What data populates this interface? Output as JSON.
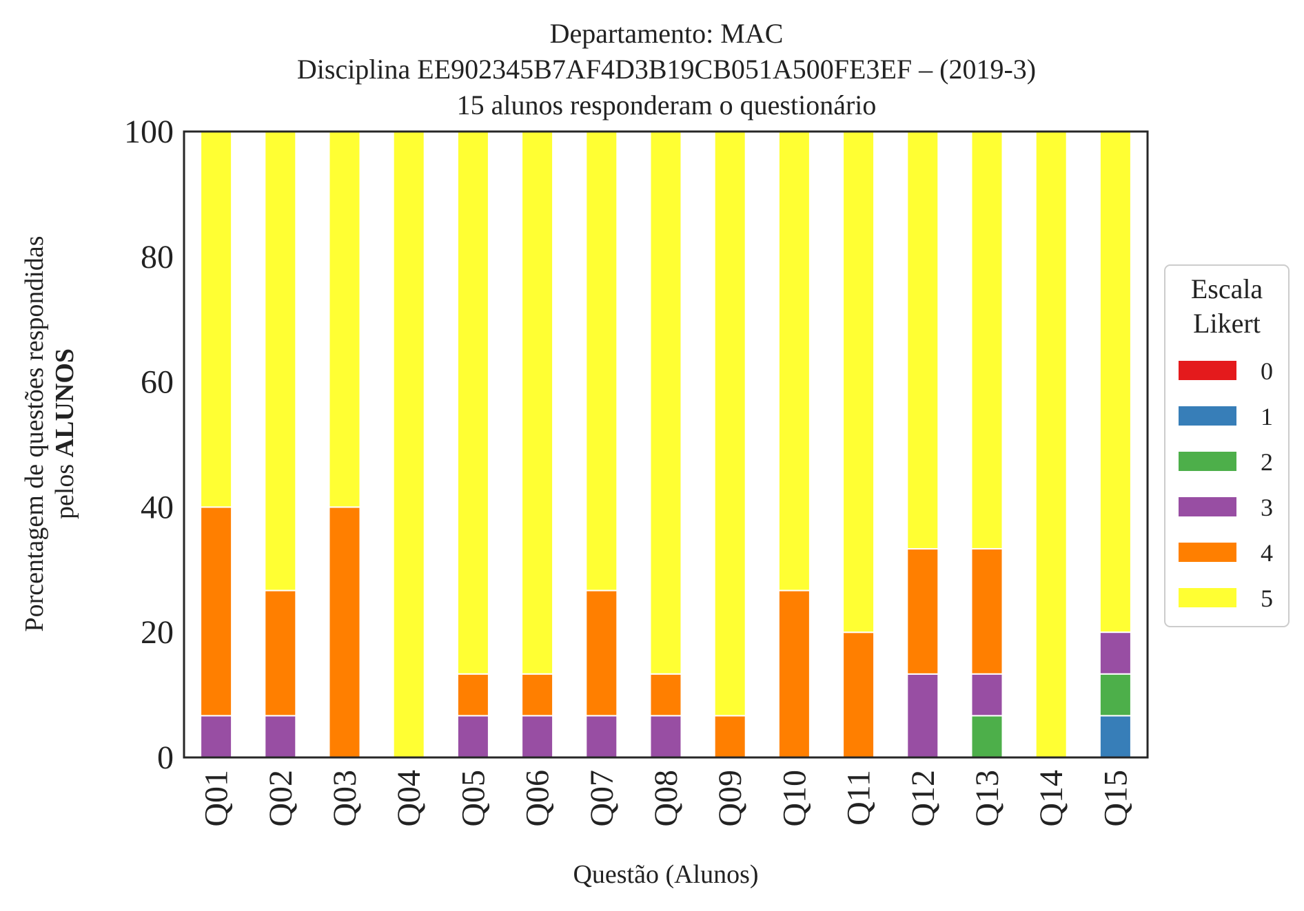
{
  "chart_data": {
    "type": "bar",
    "stacked": true,
    "title_lines": [
      "Departamento: MAC",
      "Disciplina EE902345B7AF4D3B19CB051A500FE3EF – (2019-3)",
      "15 alunos responderam o questionário"
    ],
    "xlabel": "Questão (Alunos)",
    "ylabel_line1": "Porcentagem de questões respondidas",
    "ylabel_line2_prefix": "pelos ",
    "ylabel_line2_bold": "ALUNOS",
    "ylim": [
      0,
      100
    ],
    "yticks": [
      "0",
      "20",
      "40",
      "60",
      "80",
      "100"
    ],
    "grid": false,
    "categories": [
      "Q01",
      "Q02",
      "Q03",
      "Q04",
      "Q05",
      "Q06",
      "Q07",
      "Q08",
      "Q09",
      "Q10",
      "Q11",
      "Q12",
      "Q13",
      "Q14",
      "Q15"
    ],
    "series": [
      {
        "name": "0",
        "color": "#e41a1c",
        "values": [
          0,
          0,
          0,
          0,
          0,
          0,
          0,
          0,
          0,
          0,
          0,
          0,
          0,
          0,
          0
        ]
      },
      {
        "name": "1",
        "color": "#377eb8",
        "values": [
          0,
          0,
          0,
          0,
          0,
          0,
          0,
          0,
          0,
          0,
          0,
          0,
          0,
          0,
          6.67
        ]
      },
      {
        "name": "2",
        "color": "#4daf4a",
        "values": [
          0,
          0,
          0,
          0,
          0,
          0,
          0,
          0,
          0,
          0,
          0,
          0,
          6.67,
          0,
          6.67
        ]
      },
      {
        "name": "3",
        "color": "#984ea3",
        "values": [
          6.67,
          6.67,
          0,
          0,
          6.67,
          6.67,
          6.67,
          6.67,
          0,
          0,
          0,
          13.33,
          6.67,
          0,
          6.67
        ]
      },
      {
        "name": "4",
        "color": "#ff7f00",
        "values": [
          33.33,
          20,
          40,
          0,
          6.67,
          6.67,
          20,
          6.67,
          6.67,
          26.67,
          20,
          20,
          20,
          0,
          0
        ]
      },
      {
        "name": "5",
        "color": "#ffff33",
        "values": [
          60,
          73.33,
          60,
          100,
          86.67,
          86.67,
          73.33,
          86.67,
          93.33,
          73.33,
          80,
          66.67,
          66.67,
          100,
          80
        ]
      }
    ],
    "legend": {
      "title_lines": [
        "Escala",
        "Likert"
      ],
      "placement": "right, outside plot"
    }
  }
}
